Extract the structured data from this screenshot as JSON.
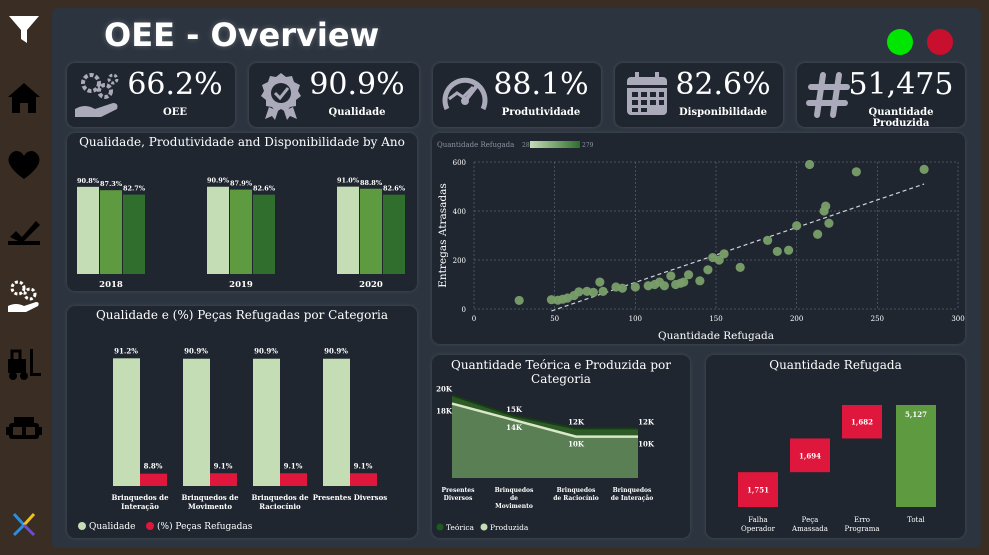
{
  "title": "OEE - Overview",
  "colors": {
    "light_green": "#c5ddb5",
    "mid_green": "#5e9a3f",
    "dark_green": "#2f6e2d",
    "red": "#e0173c",
    "status_green": "#00e600",
    "status_red": "#c8102e",
    "panel": "#1f2630",
    "background": "#2c343f"
  },
  "sidebar": {
    "items": [
      {
        "icon": "filter-icon"
      },
      {
        "icon": "home-icon"
      },
      {
        "icon": "heart-icon"
      },
      {
        "icon": "quality-check-icon"
      },
      {
        "icon": "gears-hand-icon"
      },
      {
        "icon": "forklift-icon"
      },
      {
        "icon": "vr-headset-icon"
      },
      {
        "icon": "logo-icon"
      }
    ]
  },
  "kpis": [
    {
      "value": "66.2%",
      "label": "OEE",
      "icon": "gears-hand-icon"
    },
    {
      "value": "90.9%",
      "label": "Qualidade",
      "icon": "award-icon"
    },
    {
      "value": "88.1%",
      "label": "Produtividade",
      "icon": "speedometer-icon"
    },
    {
      "value": "82.6%",
      "label": "Disponibilidade",
      "icon": "calendar-icon"
    },
    {
      "value": "51,475",
      "label": "Quantidade Produzida",
      "icon": "hash-icon"
    }
  ],
  "chart_data": [
    {
      "id": "by_year",
      "type": "bar",
      "title": "Qualidade, Produtividade and Disponibilidade by Ano",
      "categories": [
        "2018",
        "2019",
        "2020"
      ],
      "series": [
        {
          "values": [
            90.8,
            90.9,
            91.0
          ],
          "labels": [
            "90.8%",
            "90.9%",
            "91.0%"
          ]
        },
        {
          "values": [
            87.3,
            87.9,
            88.8
          ],
          "labels": [
            "87.3%",
            "87.9%",
            "88.8%"
          ]
        },
        {
          "values": [
            82.7,
            82.6,
            82.6
          ],
          "labels": [
            "82.7%",
            "82.6%",
            "82.6%"
          ]
        }
      ]
    },
    {
      "id": "by_category",
      "type": "bar",
      "title": "Qualidade e (%) Peças Refugadas por Categoria",
      "categories": [
        "Brinquedos de Interação",
        "Brinquedos de Movimento",
        "Brinquedos de Raciocínio",
        "Presentes Diversos"
      ],
      "series": [
        {
          "name": "Qualidade",
          "values": [
            91.2,
            90.9,
            90.9,
            90.9
          ],
          "labels": [
            "91.2%",
            "90.9%",
            "90.9%",
            "90.9%"
          ]
        },
        {
          "name": "(%) Peças Refugadas",
          "values": [
            8.8,
            9.1,
            9.1,
            9.1
          ],
          "labels": [
            "8.8%",
            "9.1%",
            "9.1%",
            "9.1%"
          ]
        }
      ],
      "legend": [
        "Qualidade",
        "(%) Peças Refugadas"
      ]
    },
    {
      "id": "scatter",
      "type": "scatter",
      "legend_title": "Quantidade Refugada",
      "legend_min": "28",
      "legend_max": "279",
      "xlabel": "Quantidade Refugada",
      "ylabel": "Entregas Atrasadas",
      "xlim": [
        0,
        300
      ],
      "ylim": [
        0,
        600
      ],
      "xticks": [
        "0",
        "50",
        "100",
        "150",
        "200",
        "250",
        "300"
      ],
      "yticks": [
        "0",
        "200",
        "400",
        "600"
      ],
      "trendline": true,
      "points": [
        [
          28,
          35
        ],
        [
          48,
          38
        ],
        [
          52,
          36
        ],
        [
          55,
          40
        ],
        [
          58,
          45
        ],
        [
          62,
          55
        ],
        [
          65,
          70
        ],
        [
          70,
          72
        ],
        [
          74,
          68
        ],
        [
          78,
          110
        ],
        [
          80,
          72
        ],
        [
          88,
          90
        ],
        [
          92,
          85
        ],
        [
          100,
          90
        ],
        [
          108,
          95
        ],
        [
          112,
          100
        ],
        [
          115,
          110
        ],
        [
          118,
          95
        ],
        [
          122,
          135
        ],
        [
          125,
          100
        ],
        [
          128,
          105
        ],
        [
          130,
          110
        ],
        [
          133,
          140
        ],
        [
          140,
          115
        ],
        [
          145,
          160
        ],
        [
          148,
          210
        ],
        [
          152,
          200
        ],
        [
          155,
          225
        ],
        [
          165,
          170
        ],
        [
          182,
          280
        ],
        [
          188,
          235
        ],
        [
          195,
          240
        ],
        [
          200,
          340
        ],
        [
          208,
          590
        ],
        [
          213,
          305
        ],
        [
          217,
          400
        ],
        [
          218,
          420
        ],
        [
          220,
          350
        ],
        [
          237,
          560
        ],
        [
          279,
          570
        ]
      ]
    },
    {
      "id": "teorica_produzida",
      "type": "area",
      "title": "Quantidade Teórica e Produzida por Categoria",
      "categories": [
        "Presentes Diversos",
        "Brinquedos de Movimento",
        "Brinquedos de Raciocínio",
        "Brinquedos de Interação"
      ],
      "category_lines": [
        [
          "Presentes",
          "Diversos"
        ],
        [
          "Brinquedos",
          "de",
          "Movimento"
        ],
        [
          "Brinquedos",
          "de Raciocínio"
        ],
        [
          "Brinquedos",
          "de Interação"
        ]
      ],
      "series": [
        {
          "name": "Teórica",
          "values": [
            20000,
            15000,
            12000,
            12000
          ],
          "labels": [
            "20K",
            "15K",
            "12K",
            "12K"
          ]
        },
        {
          "name": "Produzida",
          "values": [
            18000,
            14000,
            10000,
            10000
          ],
          "labels": [
            "18K",
            "14K",
            "10K",
            "10K"
          ]
        }
      ],
      "legend": [
        "Teórica",
        "Produzida"
      ]
    },
    {
      "id": "waterfall",
      "type": "bar",
      "title": "Quantidade Refugada",
      "categories": [
        "Falha Operador",
        "Peça Amassada",
        "Erro Programa",
        "Total"
      ],
      "category_lines": [
        [
          "Falha",
          "Operador"
        ],
        [
          "Peça",
          "Amassada"
        ],
        [
          "Erro",
          "Programa"
        ],
        [
          "Total"
        ]
      ],
      "values": [
        1751,
        1694,
        1682,
        5127
      ],
      "labels": [
        "1,751",
        "1,694",
        "1,682",
        "5,127"
      ]
    }
  ]
}
